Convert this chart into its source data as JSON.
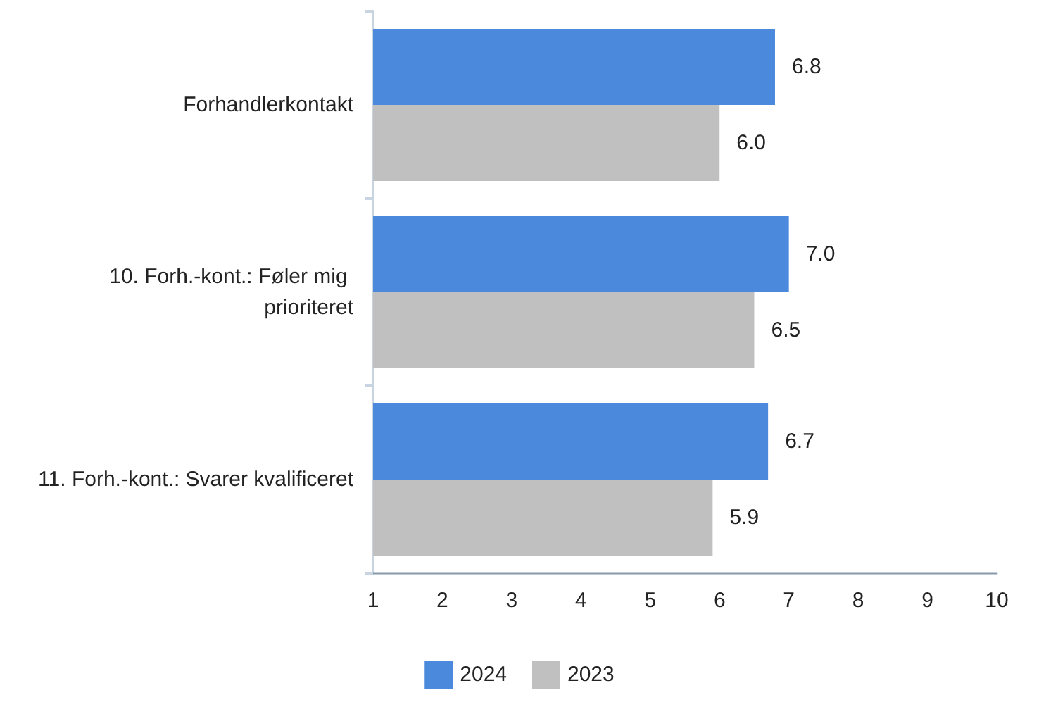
{
  "chart_data": {
    "type": "bar",
    "orientation": "horizontal",
    "categories": [
      "Forhandlerkontakt",
      "10. Forh.-kont.: Føler mig prioriteret",
      "11. Forh.-kont.: Svarer kvalificeret"
    ],
    "series": [
      {
        "name": "2024",
        "color": "#4a89dc",
        "values": [
          6.8,
          7.0,
          6.7
        ],
        "value_labels": [
          "6.8",
          "7.0",
          "6.7"
        ]
      },
      {
        "name": "2023",
        "color": "#c0c0c0",
        "values": [
          6.0,
          6.5,
          5.9
        ],
        "value_labels": [
          "6.0",
          "6.5",
          "5.9"
        ]
      }
    ],
    "xlim": [
      1,
      10
    ],
    "xticks": [
      1,
      2,
      3,
      4,
      5,
      6,
      7,
      8,
      9,
      10
    ],
    "grid": false,
    "legend": "bottom"
  }
}
